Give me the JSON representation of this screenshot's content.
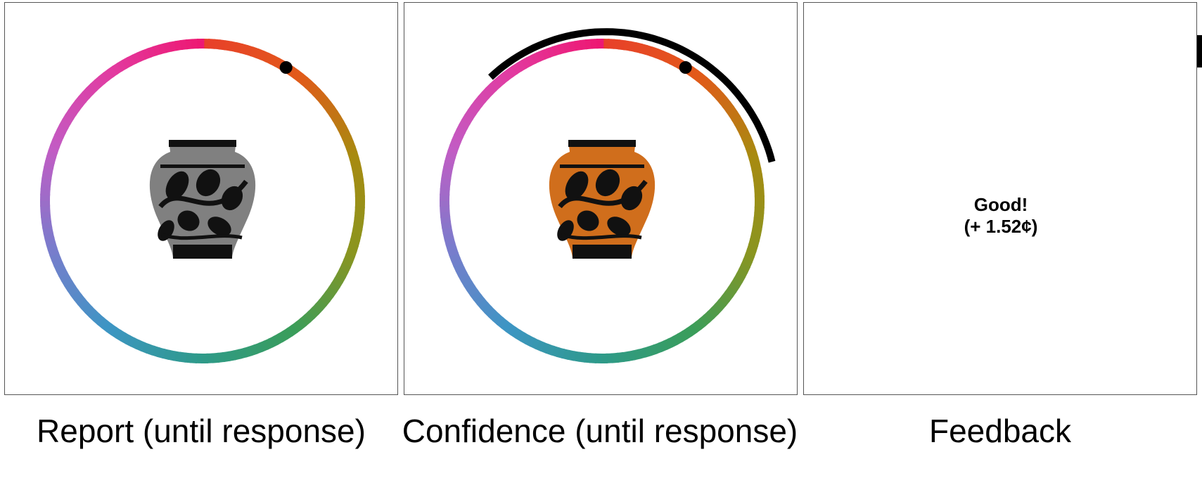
{
  "panels": [
    {
      "caption": "Report (until response)",
      "stimulus_color": "#808080",
      "stimulus_icon": "vase-icon",
      "wheel_visible": true,
      "marker_angle_deg": 32,
      "confidence_arc_visible": false
    },
    {
      "caption": "Confidence (until response)",
      "stimulus_color": "#d06e1c",
      "stimulus_icon": "vase-icon",
      "wheel_visible": true,
      "marker_angle_deg": 32,
      "confidence_arc_visible": true,
      "confidence_arc_span_deg": [
        -42,
        77
      ]
    },
    {
      "caption": "Feedback",
      "feedback_line1": "Good!",
      "feedback_line2": "(+ 1.52¢)",
      "wheel_visible": false
    }
  ],
  "wheel_colors": [
    "#e8402a",
    "#e2591a",
    "#a88a10",
    "#8a9520",
    "#3a9d5a",
    "#2e9a8a",
    "#3d95c4",
    "#7a7ccc",
    "#c25cc4",
    "#e23aa0",
    "#ee1670"
  ]
}
